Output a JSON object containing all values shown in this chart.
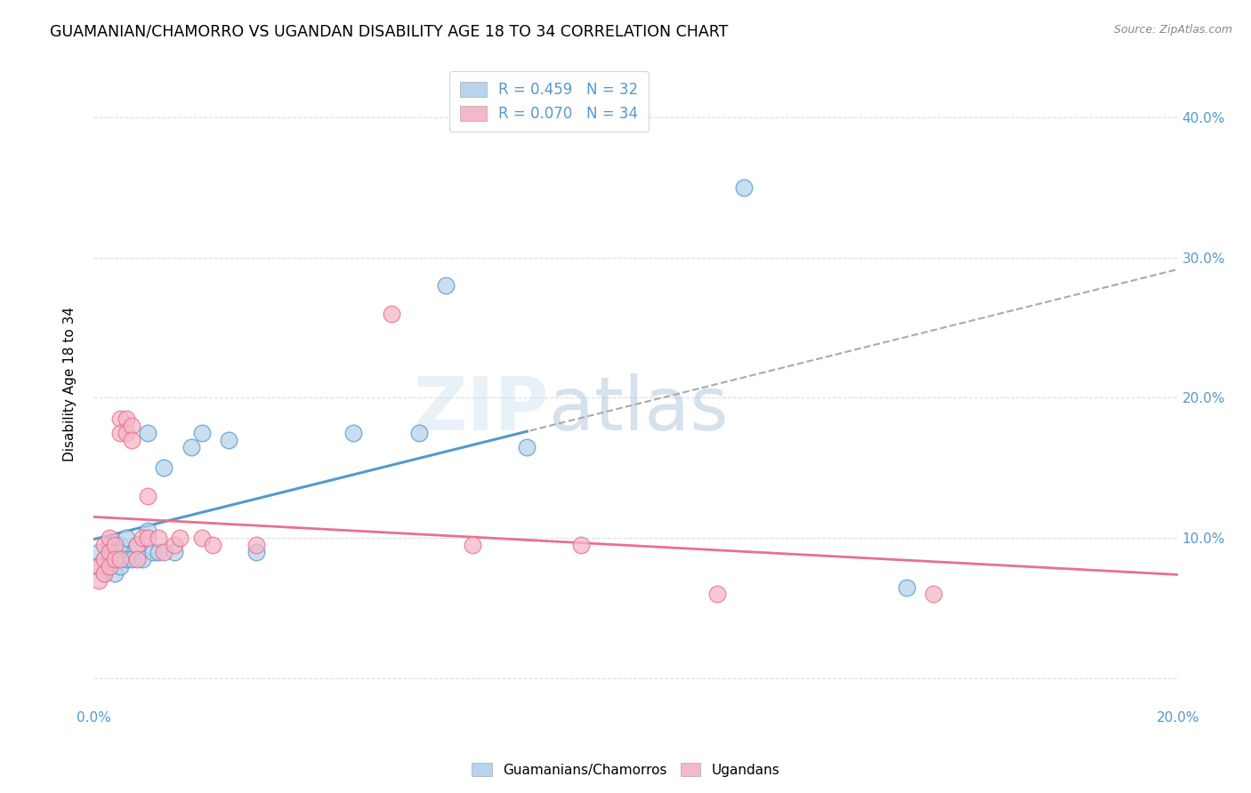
{
  "title": "GUAMANIAN/CHAMORRO VS UGANDAN DISABILITY AGE 18 TO 34 CORRELATION CHART",
  "source": "Source: ZipAtlas.com",
  "ylabel": "Disability Age 18 to 34",
  "xlim": [
    0.0,
    0.2
  ],
  "ylim": [
    -0.02,
    0.44
  ],
  "legend1_label": "R = 0.459   N = 32",
  "legend2_label": "R = 0.070   N = 34",
  "legend1_facecolor": "#b8d4ec",
  "legend2_facecolor": "#f4b8c8",
  "line1_color": "#5599cc",
  "line2_color": "#e87090",
  "dash_color": "#aaaaaa",
  "background_color": "#ffffff",
  "watermark": "ZIPatlas",
  "guamanian_x": [
    0.001,
    0.001,
    0.002,
    0.002,
    0.003,
    0.003,
    0.004,
    0.004,
    0.005,
    0.005,
    0.005,
    0.006,
    0.006,
    0.007,
    0.008,
    0.009,
    0.01,
    0.01,
    0.011,
    0.012,
    0.013,
    0.015,
    0.018,
    0.02,
    0.025,
    0.03,
    0.048,
    0.06,
    0.065,
    0.08,
    0.12,
    0.15
  ],
  "guamanian_y": [
    0.09,
    0.08,
    0.085,
    0.075,
    0.095,
    0.085,
    0.09,
    0.075,
    0.095,
    0.09,
    0.08,
    0.1,
    0.085,
    0.085,
    0.095,
    0.085,
    0.175,
    0.105,
    0.09,
    0.09,
    0.15,
    0.09,
    0.165,
    0.175,
    0.17,
    0.09,
    0.175,
    0.175,
    0.28,
    0.165,
    0.35,
    0.065
  ],
  "ugandan_x": [
    0.001,
    0.001,
    0.002,
    0.002,
    0.002,
    0.003,
    0.003,
    0.003,
    0.004,
    0.004,
    0.005,
    0.005,
    0.005,
    0.006,
    0.006,
    0.007,
    0.007,
    0.008,
    0.008,
    0.009,
    0.01,
    0.01,
    0.012,
    0.013,
    0.015,
    0.016,
    0.02,
    0.022,
    0.03,
    0.055,
    0.07,
    0.09,
    0.115,
    0.155
  ],
  "ugandan_y": [
    0.08,
    0.07,
    0.095,
    0.085,
    0.075,
    0.1,
    0.09,
    0.08,
    0.095,
    0.085,
    0.185,
    0.175,
    0.085,
    0.185,
    0.175,
    0.18,
    0.17,
    0.095,
    0.085,
    0.1,
    0.13,
    0.1,
    0.1,
    0.09,
    0.095,
    0.1,
    0.1,
    0.095,
    0.095,
    0.26,
    0.095,
    0.095,
    0.06,
    0.06
  ],
  "grid_color": "#dddddd",
  "tick_color": "#5599cc"
}
